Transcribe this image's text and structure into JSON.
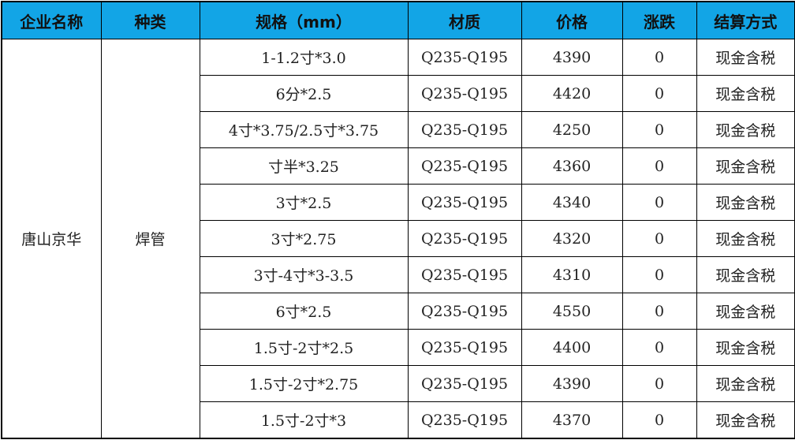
{
  "header": [
    "企业名称",
    "种类",
    "规格（mm）",
    "材质",
    "价格",
    "涨跌",
    "结算方式"
  ],
  "company": "唐山京华",
  "category": "焊管",
  "rows": [
    {
      "spec": "1-1.2寸*3.0",
      "material": "Q235-Q195",
      "price": "4390",
      "change": "0",
      "settlement": "现金含税"
    },
    {
      "spec": "6分*2.5",
      "material": "Q235-Q195",
      "price": "4420",
      "change": "0",
      "settlement": "现金含税"
    },
    {
      "spec": "4寸*3.75/2.5寸*3.75",
      "material": "Q235-Q195",
      "price": "4250",
      "change": "0",
      "settlement": "现金含税"
    },
    {
      "spec": "寸半*3.25",
      "material": "Q235-Q195",
      "price": "4360",
      "change": "0",
      "settlement": "现金含税"
    },
    {
      "spec": "3寸*2.5",
      "material": "Q235-Q195",
      "price": "4340",
      "change": "0",
      "settlement": "现金含税"
    },
    {
      "spec": "3寸*2.75",
      "material": "Q235-Q195",
      "price": "4320",
      "change": "0",
      "settlement": "现金含税"
    },
    {
      "spec": "3寸-4寸*3-3.5",
      "material": "Q235-Q195",
      "price": "4310",
      "change": "0",
      "settlement": "现金含税"
    },
    {
      "spec": "6寸*2.5",
      "material": "Q235-Q195",
      "price": "4550",
      "change": "0",
      "settlement": "现金含税"
    },
    {
      "spec": "1.5寸-2寸*2.5",
      "material": "Q235-Q195",
      "price": "4400",
      "change": "0",
      "settlement": "现金含税"
    },
    {
      "spec": "1.5寸-2寸*2.75",
      "material": "Q235-Q195",
      "price": "4390",
      "change": "0",
      "settlement": "现金含税"
    },
    {
      "spec": "1.5寸-2寸*3",
      "material": "Q235-Q195",
      "price": "4370",
      "change": "0",
      "settlement": "现金含税"
    }
  ],
  "colors": {
    "header_bg": "#12a5e6"
  }
}
